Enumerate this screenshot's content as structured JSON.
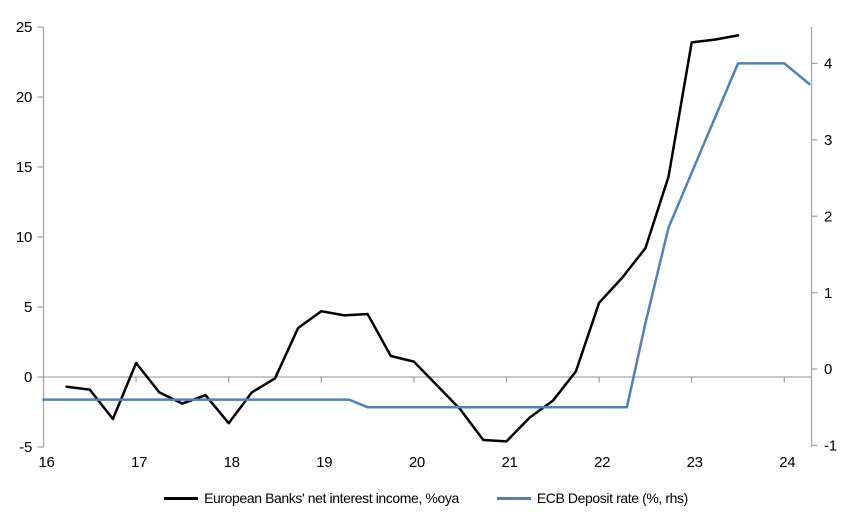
{
  "chart_data": {
    "type": "line",
    "title": "",
    "x_axis": {
      "ticks": [
        16,
        17,
        18,
        19,
        20,
        21,
        22,
        23,
        24
      ],
      "range": [
        16,
        24.3
      ],
      "unit": "year"
    },
    "left_axis": {
      "ticks": [
        25,
        20,
        15,
        10,
        5,
        0,
        -5
      ],
      "range": [
        -5,
        25
      ],
      "zero_gridline": true
    },
    "right_axis": {
      "ticks": [
        4,
        3,
        2,
        1,
        0,
        -1
      ],
      "range": [
        -1.03,
        4.48
      ]
    },
    "grid": "zero-line-only",
    "legend_position": "bottom",
    "axis_color": "#A6A6A6",
    "text_color": "#000000",
    "series": [
      {
        "name": "European Banks' net interest income, %oya",
        "axis": "left",
        "color": "#000000",
        "points": [
          [
            16.25,
            -0.7
          ],
          [
            16.5,
            -0.9
          ],
          [
            16.75,
            -3.0
          ],
          [
            17.0,
            1.0
          ],
          [
            17.25,
            -1.1
          ],
          [
            17.5,
            -1.9
          ],
          [
            17.75,
            -1.3
          ],
          [
            18.0,
            -3.3
          ],
          [
            18.25,
            -1.1
          ],
          [
            18.5,
            -0.1
          ],
          [
            18.75,
            3.5
          ],
          [
            19.0,
            4.7
          ],
          [
            19.25,
            4.4
          ],
          [
            19.5,
            4.5
          ],
          [
            19.75,
            1.5
          ],
          [
            20.0,
            1.1
          ],
          [
            20.25,
            -0.6
          ],
          [
            20.5,
            -2.3
          ],
          [
            20.75,
            -4.5
          ],
          [
            21.0,
            -4.6
          ],
          [
            21.25,
            -2.9
          ],
          [
            21.5,
            -1.7
          ],
          [
            21.75,
            0.4
          ],
          [
            22.0,
            5.3
          ],
          [
            22.25,
            7.1
          ],
          [
            22.5,
            9.2
          ],
          [
            22.75,
            14.3
          ],
          [
            23.0,
            23.9
          ],
          [
            23.25,
            24.1
          ],
          [
            23.5,
            24.4
          ]
        ]
      },
      {
        "name": "ECB Deposit rate (%, rhs)",
        "axis": "right",
        "color": "#4F81BD",
        "points": [
          [
            16.0,
            -0.4
          ],
          [
            19.3,
            -0.4
          ],
          [
            19.5,
            -0.5
          ],
          [
            22.3,
            -0.5
          ],
          [
            22.5,
            0.6
          ],
          [
            22.75,
            1.85
          ],
          [
            23.15,
            3.0
          ],
          [
            23.5,
            4.0
          ],
          [
            24.0,
            4.0
          ],
          [
            24.27,
            3.73
          ]
        ]
      }
    ]
  }
}
